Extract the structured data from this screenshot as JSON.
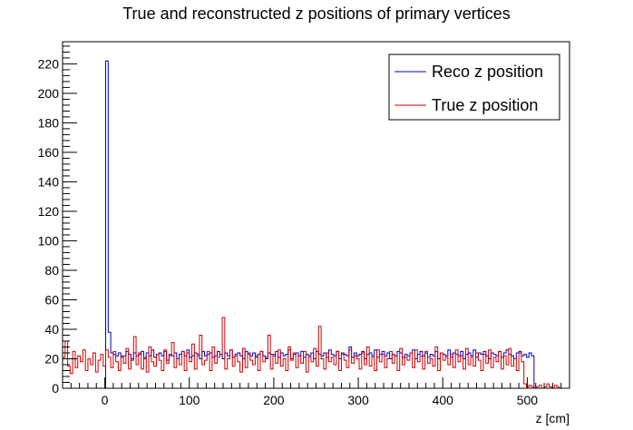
{
  "chart_data": {
    "type": "histogram",
    "title": "True and reconstructed z positions of primary vertices",
    "xlabel": "z [cm]",
    "ylabel": "",
    "xlim": [
      -50,
      550
    ],
    "ylim": [
      0,
      235
    ],
    "bin_width": 3,
    "x_ticks": [
      0,
      100,
      200,
      300,
      400,
      500
    ],
    "y_ticks": [
      0,
      20,
      40,
      60,
      80,
      100,
      120,
      140,
      160,
      180,
      200,
      220
    ],
    "grid": false,
    "legend_position": "top-right",
    "series": [
      {
        "name": "Reco z position",
        "color": "#0000cc",
        "values": [
          0,
          0,
          0,
          0,
          0,
          0,
          0,
          0,
          0,
          0,
          0,
          0,
          0,
          0,
          0,
          0,
          0,
          222,
          38,
          24,
          23,
          22,
          24,
          21,
          22,
          25,
          23,
          19,
          24,
          22,
          23,
          25,
          20,
          24,
          22,
          26,
          21,
          23,
          24,
          22,
          25,
          19,
          23,
          22,
          24,
          20,
          23,
          25,
          22,
          26,
          21,
          22,
          24,
          23,
          20,
          25,
          22,
          23,
          24,
          21,
          22,
          25,
          23,
          20,
          24,
          22,
          26,
          21,
          23,
          24,
          22,
          20,
          25,
          23,
          22,
          24,
          21,
          23,
          25,
          22,
          20,
          24,
          23,
          22,
          25,
          21,
          24,
          22,
          23,
          26,
          20,
          23,
          24,
          22,
          25,
          21,
          23,
          22,
          24,
          20,
          25,
          23,
          22,
          24,
          21,
          26,
          23,
          22,
          25,
          20,
          24,
          23,
          22,
          28,
          21,
          24,
          22,
          23,
          25,
          20,
          23,
          24,
          22,
          26,
          21,
          23,
          25,
          22,
          24,
          20,
          23,
          22,
          25,
          24,
          21,
          23,
          22,
          24,
          26,
          20,
          23,
          25,
          22,
          24,
          21,
          23,
          22,
          25,
          20,
          24,
          23,
          22,
          26,
          21,
          24,
          23,
          22,
          25,
          20,
          23,
          24,
          22,
          26,
          21,
          24,
          23,
          25,
          22,
          20,
          24,
          23,
          22,
          25,
          21,
          24,
          26,
          23,
          22,
          20,
          24,
          25,
          22,
          23,
          21,
          24,
          22,
          0,
          0,
          0,
          0,
          0,
          0,
          0,
          0,
          0,
          0,
          0,
          0,
          0,
          0,
          0,
          0,
          0
        ]
      },
      {
        "name": "True z position",
        "color": "#cc0000",
        "values": [
          21,
          32,
          15,
          10,
          25,
          14,
          22,
          18,
          26,
          12,
          20,
          16,
          24,
          11,
          19,
          23,
          15,
          26,
          21,
          14,
          25,
          18,
          12,
          22,
          17,
          27,
          13,
          20,
          35,
          16,
          24,
          13,
          21,
          11,
          28,
          18,
          15,
          23,
          19,
          12,
          26,
          17,
          22,
          31,
          14,
          20,
          16,
          25,
          12,
          24,
          18,
          30,
          13,
          22,
          36,
          16,
          19,
          25,
          12,
          28,
          17,
          21,
          23,
          48,
          13,
          20,
          26,
          15,
          22,
          18,
          11,
          27,
          14,
          24,
          19,
          16,
          22,
          12,
          25,
          18,
          21,
          36,
          13,
          23,
          17,
          26,
          15,
          20,
          12,
          28,
          19,
          24,
          14,
          22,
          17,
          25,
          11,
          21,
          18,
          27,
          15,
          42,
          20,
          13,
          24,
          18,
          21,
          16,
          25,
          12,
          23,
          19,
          14,
          26,
          17,
          22,
          20,
          13,
          24,
          16,
          28,
          15,
          21,
          12,
          26,
          18,
          23,
          14,
          20,
          25,
          17,
          22,
          12,
          27,
          16,
          21,
          19,
          24,
          14,
          26,
          18,
          22,
          13,
          25,
          17,
          20,
          15,
          28,
          12,
          24,
          19,
          21,
          16,
          23,
          14,
          26,
          18,
          22,
          13,
          27,
          16,
          21,
          15,
          24,
          19,
          12,
          23,
          17,
          26,
          14,
          21,
          18,
          25,
          13,
          22,
          16,
          27,
          15,
          20,
          12,
          24,
          18,
          3,
          1,
          2,
          1,
          0,
          1,
          2,
          0,
          1,
          3,
          1,
          0,
          2,
          1,
          0
        ]
      }
    ]
  }
}
